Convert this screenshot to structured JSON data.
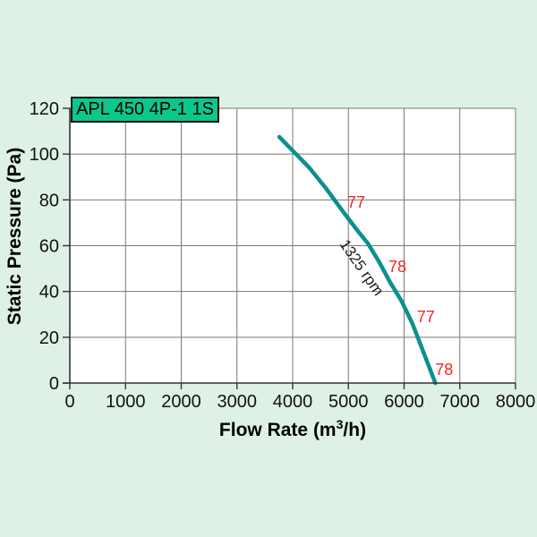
{
  "chart_data": {
    "type": "line",
    "title": "APL 450 4P-1 1S",
    "xlabel": "Flow Rate (m³/h)",
    "xlabel_parts": {
      "pre": "Flow Rate (m",
      "sup": "3",
      "post": "/h)"
    },
    "ylabel": "Static Pressure (Pa)",
    "xlim": [
      0,
      8000
    ],
    "ylim": [
      0,
      120
    ],
    "x_ticks": [
      0,
      1000,
      2000,
      3000,
      4000,
      5000,
      6000,
      7000,
      8000
    ],
    "y_ticks": [
      0,
      20,
      40,
      60,
      80,
      100,
      120
    ],
    "grid": true,
    "legend_position": "none",
    "series": [
      {
        "name": "1325 rpm",
        "color": "#0d8f8f",
        "points": [
          [
            3760,
            107.5
          ],
          [
            4000,
            101.5
          ],
          [
            4300,
            94
          ],
          [
            4600,
            85
          ],
          [
            4900,
            75
          ],
          [
            5150,
            67
          ],
          [
            5350,
            61
          ],
          [
            5550,
            53
          ],
          [
            5750,
            44
          ],
          [
            5950,
            36
          ],
          [
            6150,
            26
          ],
          [
            6300,
            16.5
          ],
          [
            6450,
            7
          ],
          [
            6560,
            0
          ]
        ]
      }
    ],
    "annotations": [
      {
        "text": "77",
        "x": 5140,
        "y": 79,
        "color": "#f52525",
        "rotation": 0
      },
      {
        "text": "78",
        "x": 5880,
        "y": 51,
        "color": "#f52525",
        "rotation": 0
      },
      {
        "text": "77",
        "x": 6390,
        "y": 29,
        "color": "#f52525",
        "rotation": 0
      },
      {
        "text": "78",
        "x": 6720,
        "y": 6,
        "color": "#f52525",
        "rotation": 0
      },
      {
        "text": "1325 rpm",
        "x": 5230,
        "y": 50.5,
        "color": "#1a1a1a",
        "rotation": 55
      }
    ],
    "colors": {
      "background": "#dff1e4",
      "plot_bg": "#ffffff",
      "grid": "#787878",
      "axis": "#333333",
      "tick_label": "#111111",
      "title_box_bg": "#0cc78c",
      "title_box_border": "#101010",
      "curve": "#0d8f8f",
      "annotation_red": "#f52525"
    }
  }
}
